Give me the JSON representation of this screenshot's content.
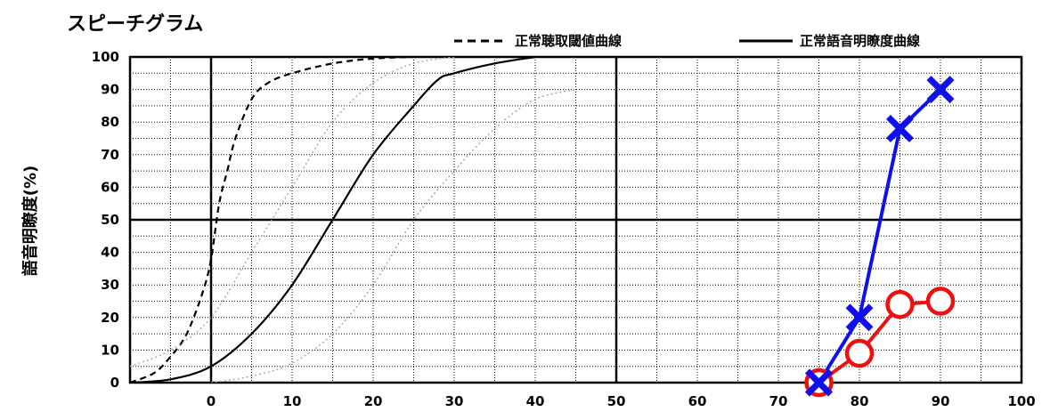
{
  "chart_data": {
    "type": "line",
    "title": "スピーチグラム",
    "ylabel": "語音明瞭度(%)",
    "xlabel": "",
    "xlim": [
      -10,
      100
    ],
    "ylim": [
      0,
      100
    ],
    "grid": true,
    "legend_position": "top-right",
    "x_ticks": [
      "0",
      "10",
      "20",
      "30",
      "40",
      "50",
      "60",
      "70",
      "80",
      "90",
      "100"
    ],
    "x_tick_values": [
      0,
      10,
      20,
      30,
      40,
      50,
      60,
      70,
      80,
      90,
      100
    ],
    "y_ticks": [
      "0",
      "10",
      "20",
      "30",
      "40",
      "50",
      "60",
      "70",
      "80",
      "90",
      "100"
    ],
    "y_tick_values": [
      0,
      10,
      20,
      30,
      40,
      50,
      60,
      70,
      80,
      90,
      100
    ],
    "legend": [
      {
        "label": "正常聴取閾値曲線",
        "style": "dashed"
      },
      {
        "label": "正常語音明瞭度曲線",
        "style": "solid"
      }
    ],
    "reference_curves": [
      {
        "style": "dashed",
        "color": "#000000",
        "x": [
          -10,
          -7,
          -5,
          -3,
          -1,
          0,
          1,
          2,
          3,
          5,
          7,
          10,
          15,
          20,
          25
        ],
        "y": [
          0,
          3,
          8,
          15,
          28,
          38,
          55,
          65,
          75,
          87,
          92,
          95,
          98,
          99.5,
          100
        ]
      },
      {
        "style": "solid",
        "color": "#000000",
        "x": [
          -10,
          -5,
          0,
          5,
          10,
          15,
          20,
          25,
          28,
          30,
          35,
          40
        ],
        "y": [
          0,
          1,
          5,
          15,
          30,
          50,
          70,
          85,
          93,
          95,
          98,
          100
        ]
      },
      {
        "style": "dotted",
        "color": "#aaaaaa",
        "x": [
          -10,
          -5,
          0,
          5,
          10,
          15,
          20,
          25,
          30
        ],
        "y": [
          5,
          10,
          20,
          40,
          60,
          80,
          92,
          98,
          100
        ]
      },
      {
        "style": "dotted",
        "color": "#aaaaaa",
        "x": [
          0,
          5,
          10,
          15,
          20,
          25,
          30,
          35,
          40,
          45
        ],
        "y": [
          0,
          2,
          6,
          15,
          30,
          50,
          65,
          78,
          87,
          90
        ]
      }
    ],
    "series": [
      {
        "color": "#1010ee",
        "marker": "x",
        "x": [
          75,
          80,
          85,
          90
        ],
        "y": [
          0,
          20,
          78,
          90
        ]
      },
      {
        "color": "#ee1010",
        "marker": "o",
        "x": [
          75,
          80,
          85,
          90
        ],
        "y": [
          0,
          9,
          24,
          25
        ]
      }
    ]
  }
}
